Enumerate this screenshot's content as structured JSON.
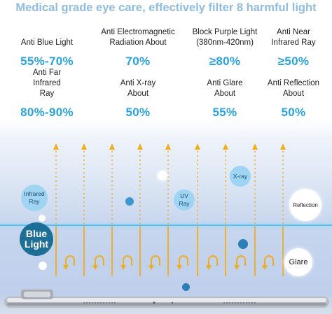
{
  "headline": "Medical grade eye care, effectively filter 8 harmful light",
  "features": [
    {
      "label": "Anti Blue Light",
      "value": "55%-70%"
    },
    {
      "label": "Anti Electromagnetic Radiation About",
      "value": "70%"
    },
    {
      "label": "Block Purple Light (380nm-420nm)",
      "value": "≥80%"
    },
    {
      "label": "Anti Near Infrared Ray",
      "value": "≥50%"
    },
    {
      "label": "Anti Far Infrared Ray",
      "value": "80%-90%"
    },
    {
      "label": "Anti X-ray About",
      "value": "50%"
    },
    {
      "label": "Anti Glare About",
      "value": "55%"
    },
    {
      "label": "Anti Reflection About",
      "value": "50%"
    }
  ],
  "diagram": {
    "bubbles": {
      "infrared": "Infrared Ray",
      "uv": "UV Ray",
      "xray": "X-ray",
      "reflection": "Reflection",
      "blue_light": "Blue Light",
      "glare": "Glare"
    },
    "colors": {
      "arrow": "#f2ad1c",
      "filter_line": "#57c3f2",
      "accent_text": "#29a3dd"
    },
    "icons": [
      "arrow-up-icon",
      "u-turn-arrow-icon",
      "tablet-device-icon"
    ]
  }
}
